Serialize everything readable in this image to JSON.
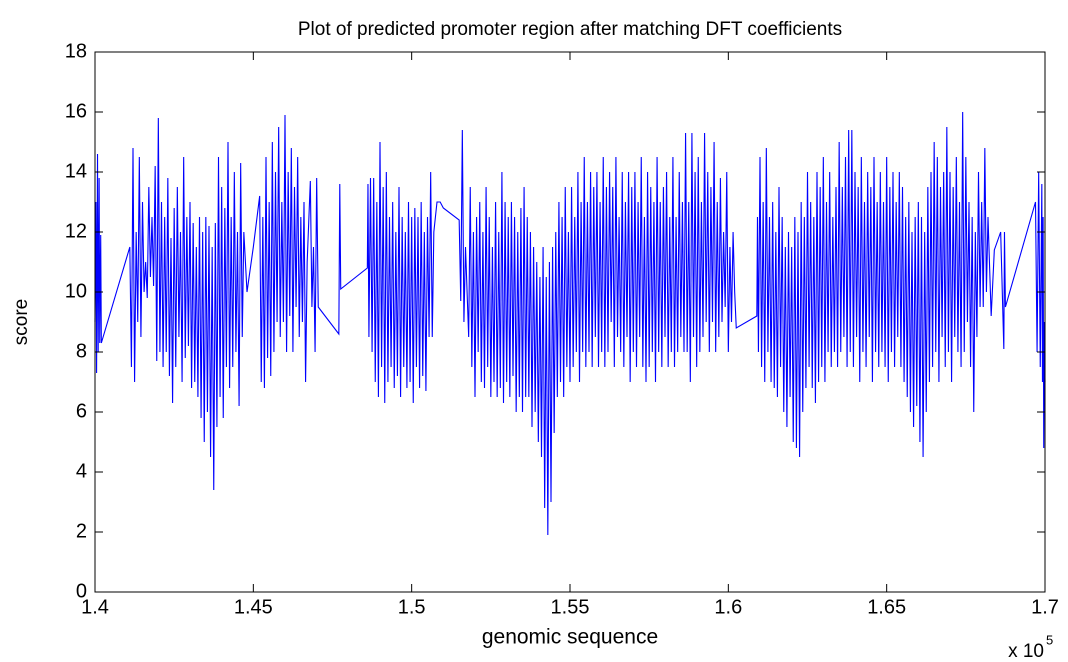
{
  "chart_data": {
    "type": "line",
    "title": "Plot of predicted promoter region after matching DFT coefficients",
    "xlabel": "genomic sequence",
    "ylabel": "score",
    "x_scale_label": "x 10",
    "x_scale_exponent": "5",
    "color": "#0000ff",
    "xlim": [
      1.4,
      1.7
    ],
    "xticks": [
      1.4,
      1.45,
      1.5,
      1.55,
      1.6,
      1.65,
      1.7
    ],
    "ylim": [
      0,
      18
    ],
    "yticks": [
      0,
      2,
      4,
      6,
      8,
      10,
      12,
      14,
      16,
      18
    ],
    "grid": false,
    "x": [
      1.4,
      1.4003,
      1.4005,
      1.4008,
      1.401,
      1.4013,
      1.4015,
      1.4018,
      1.402,
      1.411,
      1.4115,
      1.412,
      1.4125,
      1.413,
      1.4135,
      1.414,
      1.4145,
      1.415,
      1.4155,
      1.416,
      1.4165,
      1.417,
      1.4175,
      1.418,
      1.4185,
      1.419,
      1.4195,
      1.42,
      1.4205,
      1.421,
      1.4215,
      1.422,
      1.4225,
      1.423,
      1.4235,
      1.424,
      1.4245,
      1.425,
      1.4255,
      1.426,
      1.4265,
      1.427,
      1.4275,
      1.428,
      1.4285,
      1.429,
      1.4295,
      1.43,
      1.4305,
      1.431,
      1.4315,
      1.432,
      1.4325,
      1.433,
      1.4335,
      1.434,
      1.4345,
      1.435,
      1.4355,
      1.436,
      1.4365,
      1.437,
      1.4375,
      1.438,
      1.4385,
      1.439,
      1.4395,
      1.44,
      1.4405,
      1.441,
      1.4415,
      1.442,
      1.4425,
      1.443,
      1.4435,
      1.444,
      1.4445,
      1.445,
      1.4455,
      1.446,
      1.4465,
      1.447,
      1.448,
      1.45,
      1.452,
      1.4525,
      1.453,
      1.4535,
      1.454,
      1.4545,
      1.455,
      1.4555,
      1.456,
      1.4565,
      1.457,
      1.4575,
      1.458,
      1.4585,
      1.459,
      1.4595,
      1.46,
      1.4605,
      1.461,
      1.4615,
      1.462,
      1.4625,
      1.463,
      1.4635,
      1.464,
      1.4645,
      1.465,
      1.4655,
      1.466,
      1.4665,
      1.467,
      1.468,
      1.4685,
      1.469,
      1.4695,
      1.47,
      1.4705,
      1.477,
      1.4773,
      1.4776,
      1.486,
      1.4862,
      1.4865,
      1.487,
      1.4875,
      1.488,
      1.4885,
      1.489,
      1.4895,
      1.49,
      1.4905,
      1.491,
      1.4915,
      1.492,
      1.4925,
      1.493,
      1.4935,
      1.494,
      1.4945,
      1.495,
      1.4955,
      1.496,
      1.4965,
      1.497,
      1.4975,
      1.498,
      1.4985,
      1.499,
      1.4995,
      1.5,
      1.5005,
      1.501,
      1.5015,
      1.502,
      1.5025,
      1.503,
      1.5035,
      1.504,
      1.5045,
      1.505,
      1.5055,
      1.506,
      1.5065,
      1.507,
      1.508,
      1.509,
      1.51,
      1.515,
      1.5155,
      1.516,
      1.5165,
      1.517,
      1.518,
      1.5185,
      1.519,
      1.5195,
      1.52,
      1.5205,
      1.521,
      1.5215,
      1.522,
      1.5225,
      1.523,
      1.5235,
      1.524,
      1.5245,
      1.525,
      1.5255,
      1.526,
      1.5265,
      1.527,
      1.5275,
      1.528,
      1.5285,
      1.529,
      1.5295,
      1.53,
      1.5305,
      1.531,
      1.5315,
      1.532,
      1.5325,
      1.533,
      1.5335,
      1.534,
      1.5345,
      1.535,
      1.5355,
      1.536,
      1.5365,
      1.537,
      1.5375,
      1.538,
      1.5385,
      1.539,
      1.5395,
      1.54,
      1.5405,
      1.541,
      1.5415,
      1.542,
      1.5425,
      1.543,
      1.5435,
      1.544,
      1.5445,
      1.545,
      1.5455,
      1.546,
      1.5465,
      1.547,
      1.5475,
      1.548,
      1.5485,
      1.549,
      1.5495,
      1.55,
      1.5505,
      1.551,
      1.5515,
      1.552,
      1.5525,
      1.553,
      1.5535,
      1.554,
      1.5545,
      1.555,
      1.5555,
      1.556,
      1.5565,
      1.557,
      1.5575,
      1.558,
      1.5585,
      1.559,
      1.5595,
      1.56,
      1.5605,
      1.561,
      1.5615,
      1.562,
      1.5625,
      1.563,
      1.5635,
      1.564,
      1.5645,
      1.565,
      1.5655,
      1.566,
      1.5665,
      1.567,
      1.5675,
      1.568,
      1.5685,
      1.569,
      1.5695,
      1.57,
      1.5705,
      1.571,
      1.5715,
      1.572,
      1.5725,
      1.573,
      1.5735,
      1.574,
      1.5745,
      1.575,
      1.5755,
      1.576,
      1.5765,
      1.577,
      1.5775,
      1.578,
      1.5785,
      1.579,
      1.5795,
      1.58,
      1.5805,
      1.581,
      1.5815,
      1.582,
      1.5825,
      1.583,
      1.5835,
      1.584,
      1.5845,
      1.585,
      1.5855,
      1.586,
      1.5865,
      1.587,
      1.5875,
      1.588,
      1.5885,
      1.589,
      1.5895,
      1.59,
      1.5905,
      1.591,
      1.5915,
      1.592,
      1.5925,
      1.593,
      1.5935,
      1.594,
      1.5945,
      1.595,
      1.5955,
      1.596,
      1.5965,
      1.597,
      1.5975,
      1.598,
      1.5985,
      1.599,
      1.5995,
      1.6,
      1.6005,
      1.601,
      1.6015,
      1.602,
      1.6025,
      1.609,
      1.6092,
      1.6095,
      1.61,
      1.6105,
      1.611,
      1.6115,
      1.612,
      1.6125,
      1.613,
      1.6135,
      1.614,
      1.6145,
      1.615,
      1.6155,
      1.616,
      1.6165,
      1.617,
      1.6175,
      1.618,
      1.6185,
      1.619,
      1.6195,
      1.62,
      1.6205,
      1.621,
      1.6215,
      1.622,
      1.6225,
      1.623,
      1.6235,
      1.624,
      1.6245,
      1.625,
      1.6255,
      1.626,
      1.6265,
      1.627,
      1.6275,
      1.628,
      1.6285,
      1.629,
      1.6295,
      1.63,
      1.6305,
      1.631,
      1.6315,
      1.632,
      1.6325,
      1.633,
      1.6335,
      1.634,
      1.6345,
      1.635,
      1.6355,
      1.636,
      1.6365,
      1.637,
      1.6375,
      1.638,
      1.6385,
      1.639,
      1.6395,
      1.64,
      1.6405,
      1.641,
      1.6415,
      1.642,
      1.6425,
      1.643,
      1.6435,
      1.644,
      1.6445,
      1.645,
      1.6455,
      1.646,
      1.6465,
      1.647,
      1.6475,
      1.648,
      1.6485,
      1.649,
      1.6495,
      1.65,
      1.6505,
      1.651,
      1.6515,
      1.652,
      1.6525,
      1.653,
      1.6535,
      1.654,
      1.6545,
      1.655,
      1.6555,
      1.656,
      1.6565,
      1.657,
      1.6575,
      1.658,
      1.6585,
      1.659,
      1.6595,
      1.66,
      1.6605,
      1.661,
      1.6615,
      1.662,
      1.6625,
      1.663,
      1.6635,
      1.664,
      1.6645,
      1.665,
      1.6655,
      1.666,
      1.6665,
      1.667,
      1.6675,
      1.668,
      1.6685,
      1.669,
      1.6695,
      1.67,
      1.6705,
      1.671,
      1.6715,
      1.672,
      1.6725,
      1.673,
      1.6735,
      1.674,
      1.6745,
      1.675,
      1.6755,
      1.676,
      1.6765,
      1.677,
      1.6775,
      1.678,
      1.6785,
      1.679,
      1.6795,
      1.68,
      1.6805,
      1.681,
      1.6815,
      1.682,
      1.683,
      1.684,
      1.686,
      1.687,
      1.6872,
      1.6875,
      1.697,
      1.6975,
      1.698,
      1.6985,
      1.699,
      1.6992,
      1.6994,
      1.6996,
      1.6998,
      1.7
    ],
    "values": [
      9,
      13,
      7.3,
      14.6,
      8,
      13.8,
      8.3,
      11.9,
      8.3,
      11.5,
      7.5,
      14.8,
      7.0,
      12.0,
      9.0,
      14.5,
      8.5,
      13.0,
      10.0,
      11.0,
      9.8,
      13.5,
      10.5,
      12.5,
      10.2,
      14.2,
      7.7,
      15.8,
      8.0,
      13.0,
      7.5,
      12.5,
      8.0,
      13.8,
      7.2,
      11.8,
      6.3,
      12.8,
      7.5,
      13.5,
      8.5,
      12.0,
      7.0,
      14.5,
      7.8,
      12.5,
      8.2,
      13.0,
      6.8,
      12.3,
      7.0,
      11.5,
      6.5,
      12.5,
      5.8,
      12.0,
      5.0,
      12.5,
      6.0,
      12.2,
      4.5,
      11.5,
      3.4,
      12.3,
      5.5,
      14.5,
      6.5,
      13.5,
      5.8,
      12.8,
      7.5,
      15.0,
      6.8,
      12.5,
      7.5,
      14.0,
      8.0,
      12.0,
      6.2,
      14.3,
      8.5,
      12.0,
      10.0,
      11.5,
      13.2,
      7.0,
      12.5,
      6.8,
      14.5,
      7.8,
      13.0,
      7.2,
      15.0,
      8.0,
      14.0,
      9.0,
      15.5,
      8.5,
      13.0,
      9.0,
      15.9,
      8.0,
      14.0,
      9.2,
      14.8,
      8.0,
      13.5,
      9.5,
      14.5,
      8.5,
      12.5,
      9.0,
      13.0,
      7.0,
      11.0,
      13.7,
      9.5,
      11.5,
      8.0,
      13.8,
      9.5,
      8.6,
      13.6,
      10.1,
      10.8,
      13.6,
      8.5,
      13.8,
      8.0,
      13.8,
      7.0,
      13.0,
      6.5,
      15.0,
      7.5,
      13.5,
      6.3,
      14.0,
      7.0,
      12.5,
      7.5,
      13.0,
      6.8,
      12.0,
      7.2,
      13.5,
      6.5,
      12.5,
      7.5,
      12.0,
      6.8,
      13.0,
      7.0,
      12.5,
      6.3,
      12.8,
      7.5,
      12.5,
      6.8,
      13.0,
      7.2,
      12.0,
      6.7,
      12.5,
      8.5,
      14.0,
      8.5,
      12.0,
      13.0,
      13.0,
      12.8,
      12.4,
      9.7,
      15.4,
      9.0,
      11.5,
      8.5,
      13.5,
      7.5,
      12.0,
      6.5,
      12.5,
      8.0,
      13.0,
      7.0,
      12.0,
      6.8,
      13.5,
      7.5,
      12.5,
      6.5,
      11.5,
      7.0,
      13.0,
      6.5,
      12.0,
      6.8,
      14.0,
      6.3,
      13.0,
      7.0,
      12.5,
      6.5,
      13.0,
      7.2,
      12.5,
      6.0,
      12.0,
      6.5,
      12.8,
      6.0,
      13.5,
      6.5,
      12.5,
      6.5,
      12.0,
      5.5,
      11.5,
      6.0,
      11.0,
      5.0,
      10.5,
      4.5,
      11.5,
      2.8,
      10.5,
      1.9,
      11.0,
      3.0,
      11.5,
      5.3,
      12.0,
      6.5,
      13.0,
      7.0,
      12.5,
      6.5,
      13.5,
      7.5,
      12.0,
      7.0,
      13.5,
      7.5,
      12.5,
      8.0,
      14.0,
      7.0,
      13.0,
      8.0,
      14.5,
      7.5,
      13.0,
      8.0,
      14.0,
      7.5,
      13.5,
      8.5,
      14.0,
      7.5,
      13.0,
      8.0,
      14.5,
      7.5,
      13.5,
      8.0,
      14.0,
      9.0,
      13.5,
      7.5,
      14.5,
      8.5,
      12.5,
      8.0,
      14.0,
      7.5,
      13.0,
      8.5,
      14.0,
      7.0,
      13.5,
      8.0,
      14.0,
      7.5,
      13.0,
      8.5,
      14.5,
      7.5,
      12.5,
      7.0,
      14.0,
      7.5,
      13.5,
      8.0,
      13.0,
      7.0,
      14.5,
      8.0,
      13.0,
      7.5,
      13.5,
      8.5,
      14.0,
      7.5,
      12.5,
      8.0,
      14.5,
      7.5,
      12.5,
      8.0,
      14.0,
      8.5,
      13.0,
      8.0,
      15.3,
      8.0,
      13.0,
      7.0,
      15.3,
      8.5,
      14.0,
      7.5,
      14.5,
      8.0,
      13.0,
      8.5,
      15.3,
      9.0,
      14.0,
      8.0,
      13.5,
      9.0,
      15.0,
      8.0,
      13.0,
      8.5,
      13.8,
      9.0,
      12.0,
      9.5,
      14.0,
      8.0,
      11.5,
      9.0,
      12.0,
      10.0,
      8.8,
      9.2,
      12.5,
      8.0,
      14.5,
      7.5,
      13.0,
      7.0,
      14.8,
      8.0,
      12.5,
      7.0,
      13.0,
      6.8,
      12.0,
      6.5,
      13.5,
      7.5,
      12.5,
      6.0,
      11.5,
      5.5,
      12.0,
      6.5,
      11.5,
      5.0,
      12.5,
      4.8,
      12.0,
      4.5,
      13.0,
      6.0,
      12.5,
      6.8,
      14.0,
      7.5,
      13.0,
      6.8,
      12.5,
      6.3,
      14.0,
      7.0,
      13.5,
      7.5,
      14.5,
      7.0,
      13.0,
      8.0,
      14.0,
      7.5,
      12.5,
      8.0,
      13.5,
      7.5,
      15.0,
      8.0,
      13.5,
      8.5,
      14.5,
      7.5,
      15.4,
      8.0,
      15.4,
      7.5,
      14.0,
      8.5,
      13.5,
      7.0,
      14.5,
      8.0,
      13.0,
      7.5,
      14.0,
      8.5,
      13.5,
      7.0,
      14.5,
      8.0,
      13.0,
      7.5,
      14.0,
      8.0,
      13.0,
      7.5,
      14.5,
      7.0,
      13.5,
      8.0,
      14.0,
      7.5,
      13.0,
      8.5,
      14.0,
      7.5,
      13.5,
      7.0,
      12.5,
      6.5,
      13.0,
      6.0,
      12.0,
      5.5,
      12.5,
      6.2,
      13.0,
      5.0,
      12.5,
      4.5,
      12.0,
      6.0,
      13.5,
      7.0,
      14.0,
      7.5,
      15.0,
      8.0,
      14.5,
      7.0,
      13.5,
      8.5,
      14.0,
      7.5,
      15.5,
      8.0,
      14.0,
      7.0,
      13.5,
      8.5,
      14.5,
      8.0,
      13.0,
      7.5,
      16.0,
      8.0,
      14.5,
      9.0,
      13.0,
      7.5,
      12.5,
      6.0,
      12.0,
      8.5,
      14.0,
      9.5,
      13.0,
      9.5,
      14.8,
      10.0,
      12.5,
      9.2,
      11.4,
      12.0,
      8.1,
      12.0,
      9.5,
      13.0,
      8.0,
      14.0,
      7.5,
      13.6,
      7.0,
      12.5,
      4.8,
      9.0,
      7.0
    ]
  }
}
